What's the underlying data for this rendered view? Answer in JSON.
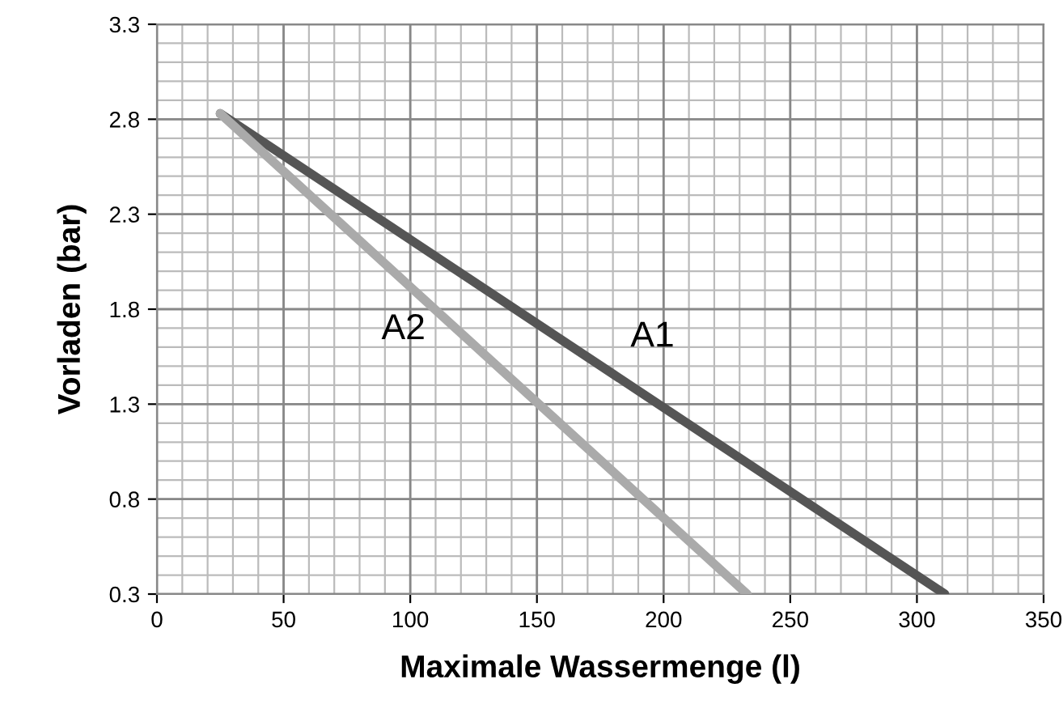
{
  "chart_data": {
    "type": "line",
    "xlabel": "Maximale Wassermenge (l)",
    "ylabel": "Vorladen (bar)",
    "series": [
      {
        "name": "A1",
        "color": "#555555",
        "x": [
          25,
          311
        ],
        "values": [
          2.83,
          0.3
        ]
      },
      {
        "name": "A2",
        "color": "#aaaaaa",
        "x": [
          25,
          233
        ],
        "values": [
          2.83,
          0.3
        ]
      }
    ],
    "xlim": [
      0,
      350
    ],
    "xticks": [
      0,
      50,
      100,
      150,
      200,
      250,
      300,
      350
    ],
    "ylim": [
      0.3,
      3.3
    ],
    "yticks": [
      0.3,
      0.8,
      1.3,
      1.8,
      2.3,
      2.8,
      3.3
    ],
    "grid": true,
    "legend": false,
    "marker": "none",
    "line_style": "solid"
  }
}
